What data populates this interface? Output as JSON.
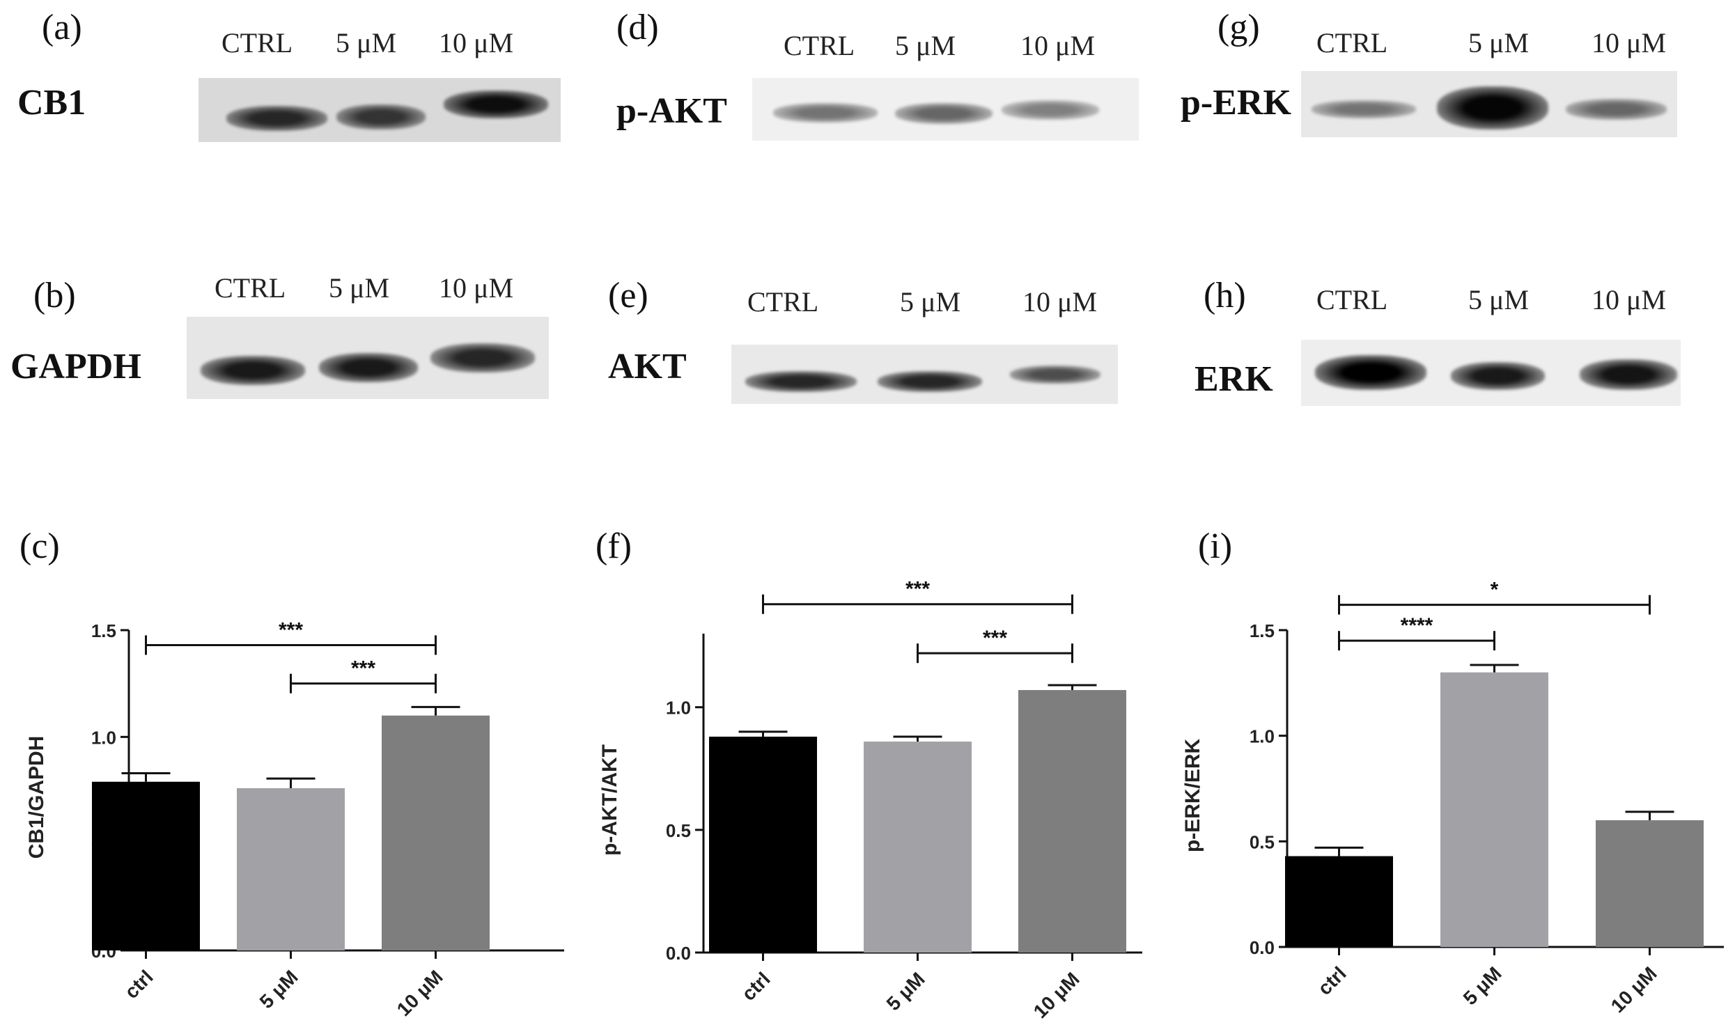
{
  "panel_letters": {
    "a": "(a)",
    "b": "(b)",
    "c": "(c)",
    "d": "(d)",
    "e": "(e)",
    "f": "(f)",
    "g": "(g)",
    "h": "(h)",
    "i": "(i)"
  },
  "blots": [
    {
      "id": "cb1",
      "protein": "CB1",
      "lanes": [
        "CTRL",
        "5 μM",
        "10 μM"
      ],
      "background": "#d9d9d9",
      "band_intensity": [
        0.85,
        0.8,
        0.95
      ]
    },
    {
      "id": "gapdh",
      "protein": "GAPDH",
      "lanes": [
        "CTRL",
        "5 μM",
        "10 μM"
      ],
      "background": "#e6e6e6",
      "band_intensity": [
        0.9,
        0.9,
        0.85
      ]
    },
    {
      "id": "pakt",
      "protein": "p-AKT",
      "lanes": [
        "CTRL",
        "5 μM",
        "10 μM"
      ],
      "background": "#f0f0f0",
      "band_intensity": [
        0.55,
        0.6,
        0.5
      ]
    },
    {
      "id": "akt",
      "protein": "AKT",
      "lanes": [
        "CTRL",
        "5 μM",
        "10 μM"
      ],
      "background": "#e9e9e9",
      "band_intensity": [
        0.85,
        0.85,
        0.7
      ]
    },
    {
      "id": "perk",
      "protein": "p-ERK",
      "lanes": [
        "CTRL",
        "5 μM",
        "10 μM"
      ],
      "background": "#e8e8e8",
      "band_intensity": [
        0.55,
        0.98,
        0.6
      ]
    },
    {
      "id": "erk",
      "protein": "ERK",
      "lanes": [
        "CTRL",
        "5 μM",
        "10 μM"
      ],
      "background": "#eeeeee",
      "band_intensity": [
        1.0,
        0.9,
        0.92
      ]
    }
  ],
  "chart_data": [
    {
      "type": "bar",
      "panel": "c",
      "title": "",
      "xlabel": "",
      "ylabel": "CB1/GAPDH",
      "categories": [
        "ctrl",
        "5 μM",
        "10 μM"
      ],
      "values": [
        0.79,
        0.76,
        1.1
      ],
      "errors": [
        0.04,
        0.045,
        0.04
      ],
      "colors": [
        "#000000",
        "#a2a2a6",
        "#7e7e7e"
      ],
      "ylim": [
        0,
        1.5
      ],
      "yticks": [
        "0.0",
        "0.5",
        "1.0",
        "1.5"
      ],
      "ytick_values": [
        0,
        0.5,
        1.0,
        1.5
      ],
      "grid": false,
      "significance": [
        {
          "from": 0,
          "to": 2,
          "label": "***",
          "y": 1.43
        },
        {
          "from": 1,
          "to": 2,
          "label": "***",
          "y": 1.25
        }
      ]
    },
    {
      "type": "bar",
      "panel": "f",
      "title": "",
      "xlabel": "",
      "ylabel": "p-AKT/AKT",
      "categories": [
        "ctrl",
        "5 μM",
        "10 μM"
      ],
      "values": [
        0.88,
        0.86,
        1.07
      ],
      "errors": [
        0.02,
        0.02,
        0.02
      ],
      "colors": [
        "#000000",
        "#a2a2a6",
        "#7e7e7e"
      ],
      "ylim": [
        0,
        1.3
      ],
      "yticks": [
        "0.0",
        "0.5",
        "1.0"
      ],
      "ytick_values": [
        0,
        0.5,
        1.0
      ],
      "grid": false,
      "significance": [
        {
          "from": 0,
          "to": 2,
          "label": "***",
          "y": 1.42
        },
        {
          "from": 1,
          "to": 2,
          "label": "***",
          "y": 1.22
        }
      ]
    },
    {
      "type": "bar",
      "panel": "i",
      "title": "",
      "xlabel": "",
      "ylabel": "p-ERK/ERK",
      "categories": [
        "ctrl",
        "5 μM",
        "10 μM"
      ],
      "values": [
        0.43,
        1.3,
        0.6
      ],
      "errors": [
        0.04,
        0.035,
        0.04
      ],
      "colors": [
        "#000000",
        "#a2a2a6",
        "#7e7e7e"
      ],
      "ylim": [
        0,
        1.5
      ],
      "yticks": [
        "0.0",
        "0.5",
        "1.0",
        "1.5"
      ],
      "ytick_values": [
        0,
        0.5,
        1.0,
        1.5
      ],
      "grid": false,
      "significance": [
        {
          "from": 0,
          "to": 2,
          "label": "*",
          "y": 1.62
        },
        {
          "from": 0,
          "to": 1,
          "label": "****",
          "y": 1.45
        }
      ]
    }
  ]
}
